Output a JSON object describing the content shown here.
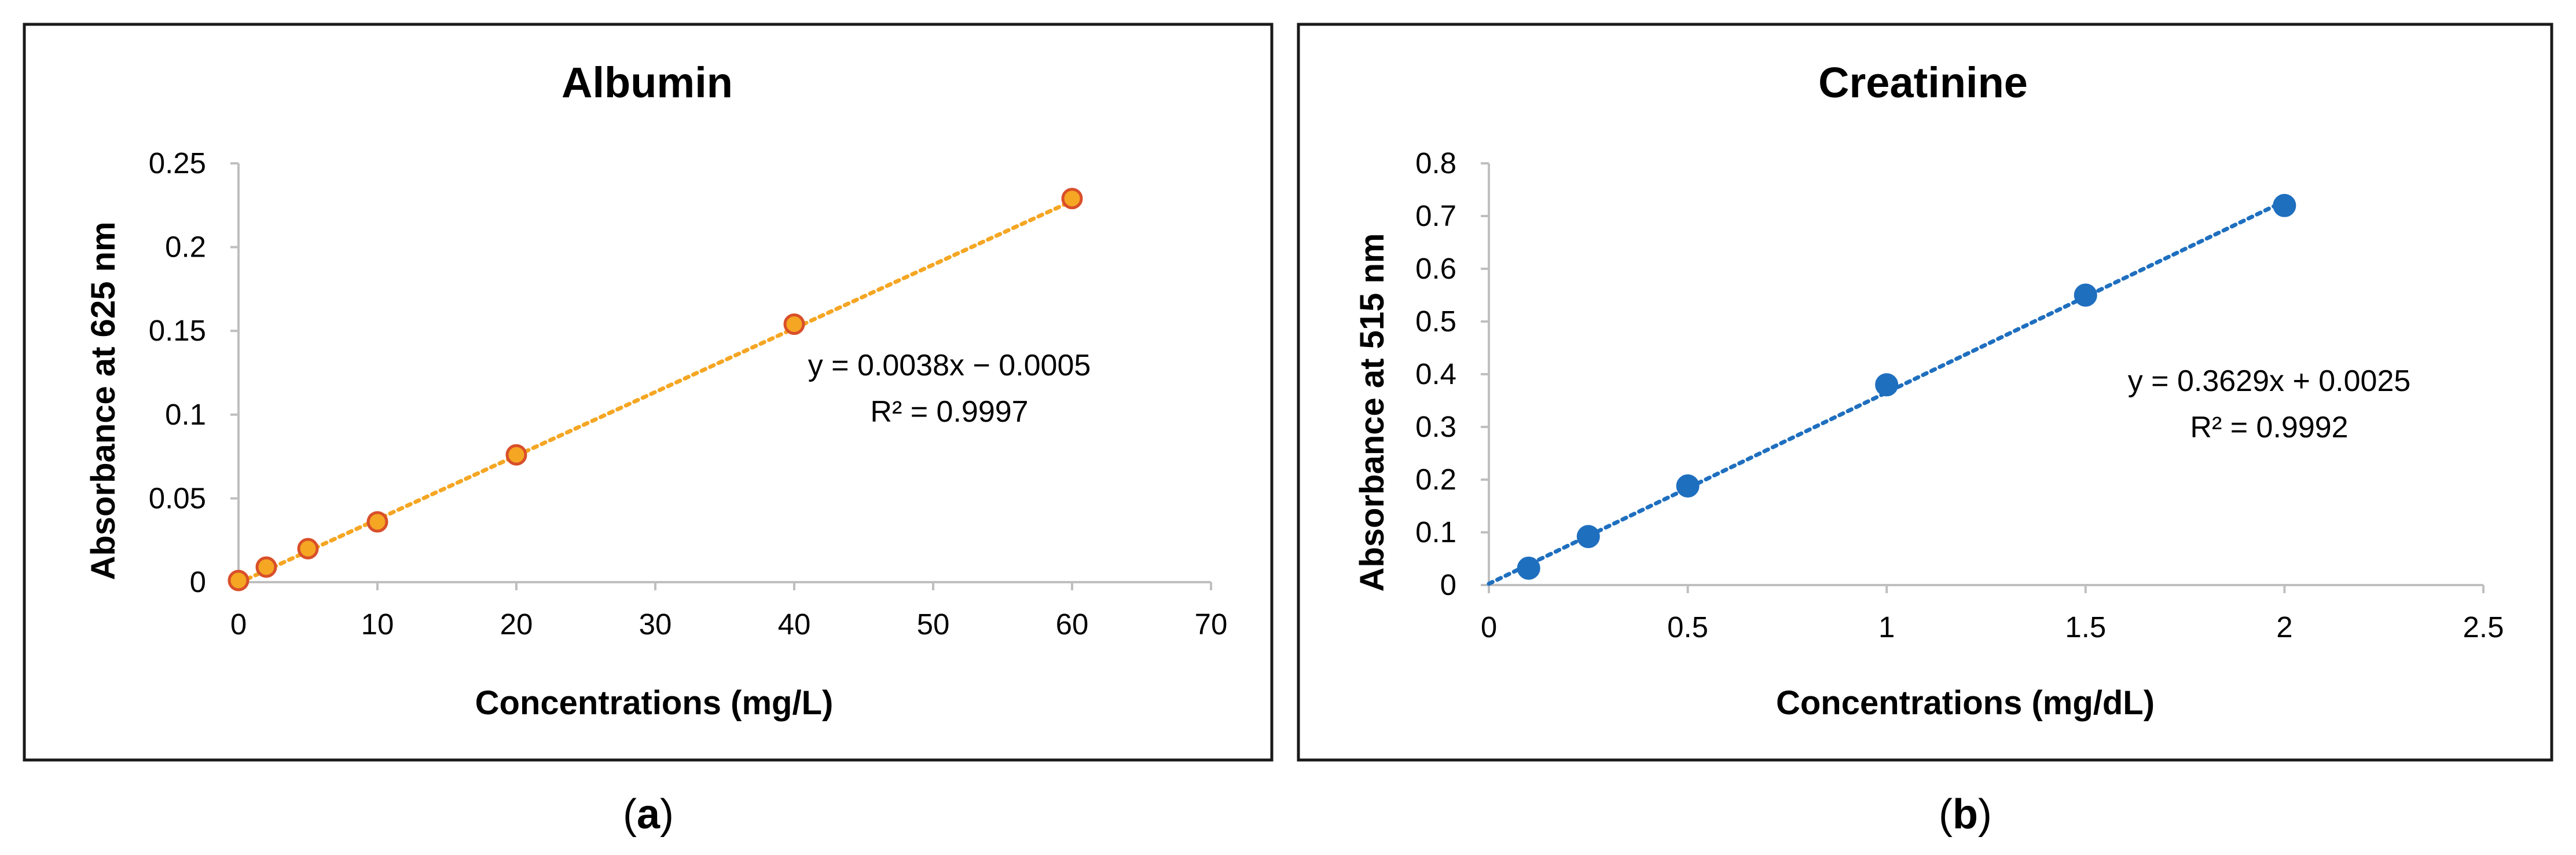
{
  "chart_data": [
    {
      "type": "scatter",
      "title": "Albumin",
      "xlabel": "Concentrations (mg/L)",
      "ylabel": "Absorbance at 625 nm",
      "xlim": [
        0,
        70
      ],
      "ylim": [
        0,
        0.25
      ],
      "xticks": [
        "0",
        "10",
        "20",
        "30",
        "40",
        "50",
        "60",
        "70"
      ],
      "yticks": [
        "0",
        "0.05",
        "0.1",
        "0.15",
        "0.2",
        "0.25"
      ],
      "grid": false,
      "series": [
        {
          "x": [
            0,
            2,
            5,
            10,
            20,
            40,
            60
          ],
          "y": [
            0.001,
            0.009,
            0.02,
            0.036,
            0.076,
            0.154,
            0.229
          ],
          "color": "#f5a623",
          "edge_color": "#d94f2a"
        }
      ],
      "trendline": {
        "style": "dotted",
        "color": "#f5a623",
        "slope": 0.0038,
        "intercept": -0.0005,
        "x_range": [
          0,
          60
        ]
      },
      "equation": "y = 0.0038x − 0.0005",
      "r_squared": "R² = 0.9997",
      "caption_letter": "a"
    },
    {
      "type": "scatter",
      "title": "Creatinine",
      "xlabel": "Concentrations (mg/dL)",
      "ylabel": "Absorbance at 515 nm",
      "xlim": [
        0,
        2.5
      ],
      "ylim": [
        0,
        0.8
      ],
      "xticks": [
        "0",
        "0.5",
        "1",
        "1.5",
        "2",
        "2.5"
      ],
      "yticks": [
        "0",
        "0.1",
        "0.2",
        "0.3",
        "0.4",
        "0.5",
        "0.6",
        "0.7",
        "0.8"
      ],
      "grid": false,
      "series": [
        {
          "x": [
            0.1,
            0.25,
            0.5,
            1,
            1.5,
            2
          ],
          "y": [
            0.032,
            0.092,
            0.188,
            0.38,
            0.55,
            0.72
          ],
          "color": "#1f6fbf",
          "edge_color": "#1f6fbf"
        }
      ],
      "trendline": {
        "style": "dotted",
        "color": "#1f6fbf",
        "slope": 0.3629,
        "intercept": 0.0025,
        "x_range": [
          0,
          2
        ]
      },
      "equation": "y = 0.3629x + 0.0025",
      "r_squared": "R² = 0.9992",
      "caption_letter": "b"
    }
  ],
  "caption_paren_open": "(",
  "caption_paren_close": ")",
  "frame_color": "#1a1a1a"
}
